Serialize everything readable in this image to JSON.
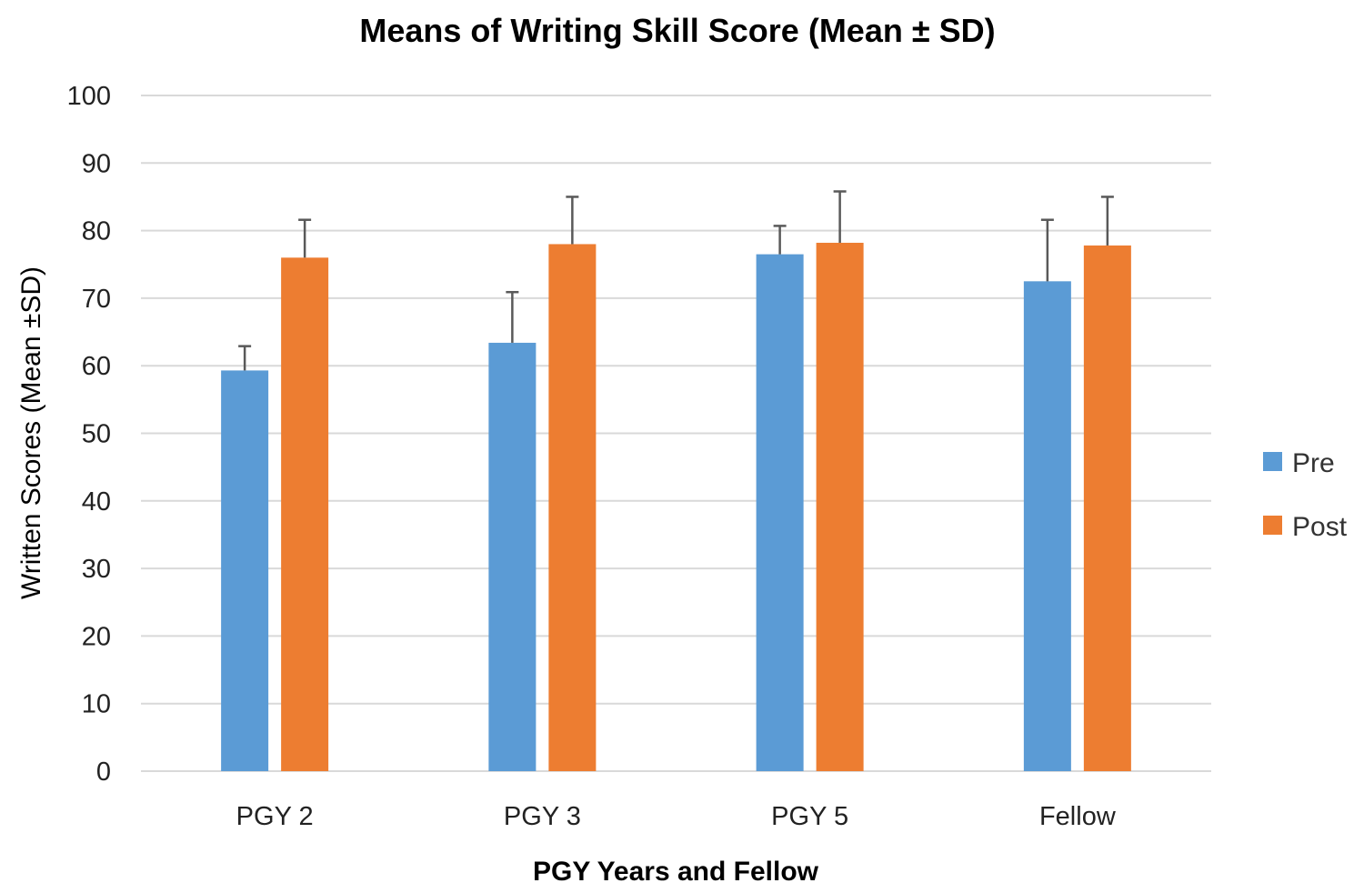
{
  "chart_data": {
    "type": "bar",
    "title": "Means of Writing Skill Score (Mean ± SD)",
    "xlabel": "PGY Years and Fellow",
    "ylabel": "Written Scores (Mean ±SD)",
    "categories": [
      "PGY 2",
      "PGY 3",
      "PGY 5",
      "Fellow"
    ],
    "ylim": [
      0,
      100
    ],
    "yticks": [
      0,
      10,
      20,
      30,
      40,
      50,
      60,
      70,
      80,
      90,
      100
    ],
    "grid": true,
    "legend_position": "right",
    "series": [
      {
        "name": "Pre",
        "color": "#5b9bd5",
        "values": [
          59.3,
          63.4,
          76.5,
          72.5
        ],
        "sd": [
          3.6,
          7.5,
          4.2,
          9.1
        ]
      },
      {
        "name": "Post",
        "color": "#ed7d31",
        "values": [
          76.0,
          78.0,
          78.2,
          77.8
        ],
        "sd": [
          5.6,
          7.0,
          7.6,
          7.2
        ]
      }
    ]
  }
}
